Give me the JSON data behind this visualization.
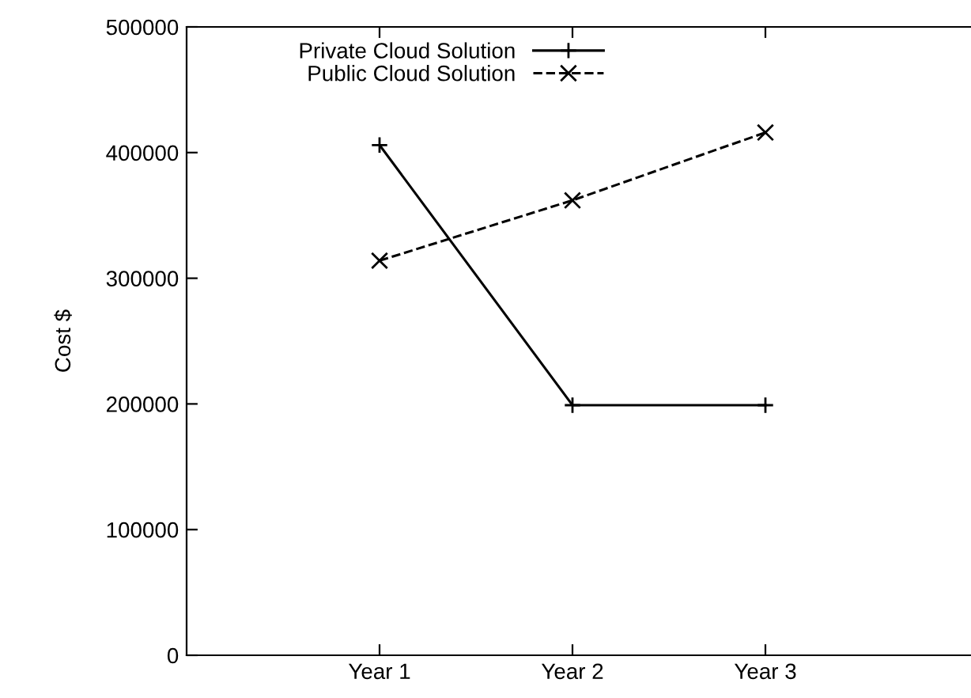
{
  "chart_data": {
    "type": "line",
    "ylabel": "Cost $",
    "categories": [
      "Year 1",
      "Year 2",
      "Year 3"
    ],
    "series": [
      {
        "name": "Private Cloud Solution",
        "color": "#000000",
        "values": [
          406000,
          199000,
          199000
        ],
        "marker": "plus",
        "line_style": "solid"
      },
      {
        "name": "Public Cloud Solution",
        "color": "#000000",
        "values": [
          314000,
          362000,
          416000
        ],
        "marker": "cross",
        "line_style": "dashed"
      }
    ],
    "ylim": [
      0,
      500000
    ],
    "yticks": [
      0,
      100000,
      200000,
      300000,
      400000,
      500000
    ],
    "grid": false,
    "legend": "top left"
  }
}
